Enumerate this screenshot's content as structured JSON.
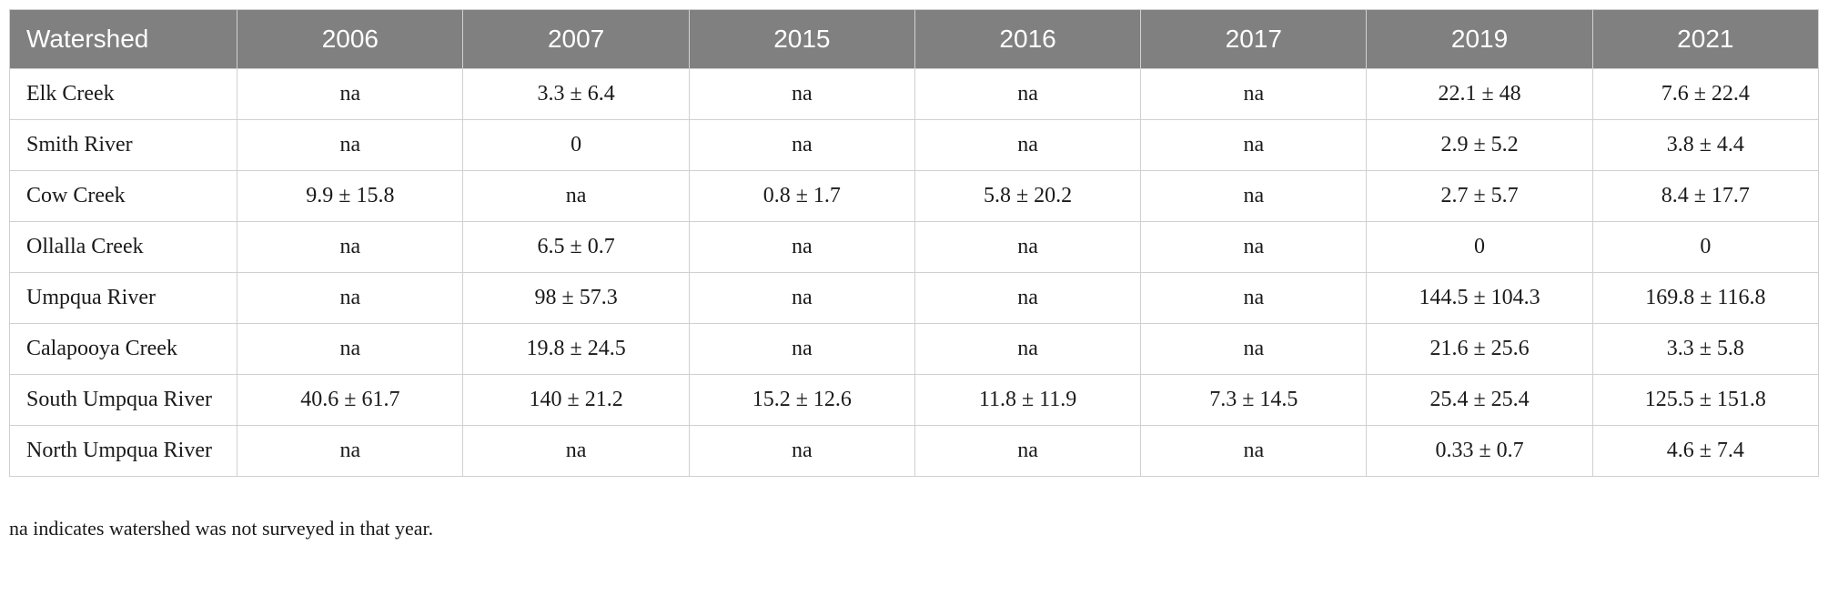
{
  "table": {
    "header_bg": "#808080",
    "header_text_color": "#ffffff",
    "border_color": "#d0d0d0",
    "cell_bg": "#ffffff",
    "cell_text_color": "#1a1a1a",
    "header_font_size": 28,
    "cell_font_size": 24,
    "columns": [
      "Watershed",
      "2006",
      "2007",
      "2015",
      "2016",
      "2017",
      "2019",
      "2021"
    ],
    "rows": [
      [
        "Elk Creek",
        "na",
        "3.3 ± 6.4",
        "na",
        "na",
        "na",
        "22.1 ± 48",
        "7.6 ± 22.4"
      ],
      [
        "Smith River",
        "na",
        "0",
        "na",
        "na",
        "na",
        "2.9 ± 5.2",
        "3.8 ± 4.4"
      ],
      [
        "Cow Creek",
        "9.9 ± 15.8",
        "na",
        "0.8 ± 1.7",
        "5.8 ± 20.2",
        "na",
        "2.7 ± 5.7",
        "8.4 ± 17.7"
      ],
      [
        "Ollalla Creek",
        "na",
        "6.5 ± 0.7",
        "na",
        "na",
        "na",
        "0",
        "0"
      ],
      [
        "Umpqua River",
        "na",
        "98 ± 57.3",
        "na",
        "na",
        "na",
        "144.5 ± 104.3",
        "169.8 ± 116.8"
      ],
      [
        "Calapooya Creek",
        "na",
        "19.8 ± 24.5",
        "na",
        "na",
        "na",
        "21.6 ± 25.6",
        "3.3 ± 5.8"
      ],
      [
        "South Umpqua River",
        "40.6 ± 61.7",
        "140 ± 21.2",
        "15.2 ± 12.6",
        "11.8 ± 11.9",
        "7.3 ± 14.5",
        "25.4 ± 25.4",
        "125.5 ± 151.8"
      ],
      [
        "North Umpqua River",
        "na",
        "na",
        "na",
        "na",
        "na",
        "0.33 ± 0.7",
        "4.6 ± 7.4"
      ]
    ]
  },
  "footnote": "na indicates watershed was not surveyed in that year."
}
